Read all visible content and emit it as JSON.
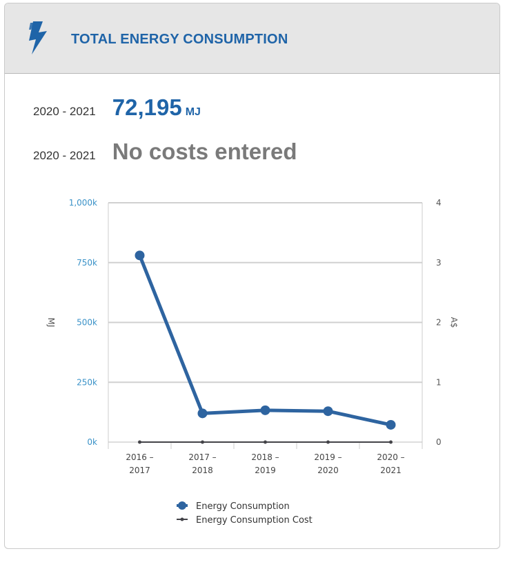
{
  "card": {
    "title": "TOTAL ENERGY CONSUMPTION",
    "icon": "lightning-bolt-icon",
    "accent_color": "#1f64a8"
  },
  "stats": [
    {
      "period": "2020 - 2021",
      "value": "72,195",
      "unit": "MJ"
    },
    {
      "period": "2020 - 2021",
      "value": "No costs entered",
      "unit": ""
    }
  ],
  "chart_data": {
    "type": "line",
    "categories": [
      [
        "2016 –",
        "2017"
      ],
      [
        "2017 –",
        "2018"
      ],
      [
        "2018 –",
        "2019"
      ],
      [
        "2019 –",
        "2020"
      ],
      [
        "2020 –",
        "2021"
      ]
    ],
    "y_left": {
      "label": "MJ",
      "min": 0,
      "max": 1000000,
      "ticks": [
        0,
        250000,
        500000,
        750000,
        1000000
      ],
      "tick_labels": [
        "0k",
        "250k",
        "500k",
        "750k",
        "1,000k"
      ],
      "label_color": "#3a92c8"
    },
    "y_right": {
      "label": "A$",
      "min": 0,
      "max": 4,
      "ticks": [
        0,
        1,
        2,
        3,
        4
      ],
      "tick_labels": [
        "0",
        "1",
        "2",
        "3",
        "4"
      ]
    },
    "grid": true,
    "series": [
      {
        "name": "Energy Consumption",
        "axis": "left",
        "color": "#2e64a0",
        "values": [
          780000,
          120000,
          133000,
          129000,
          72195
        ]
      },
      {
        "name": "Energy Consumption Cost",
        "axis": "right",
        "color": "#434348",
        "values": [
          0,
          0,
          0,
          0,
          0
        ]
      }
    ],
    "legend_position": "bottom"
  }
}
